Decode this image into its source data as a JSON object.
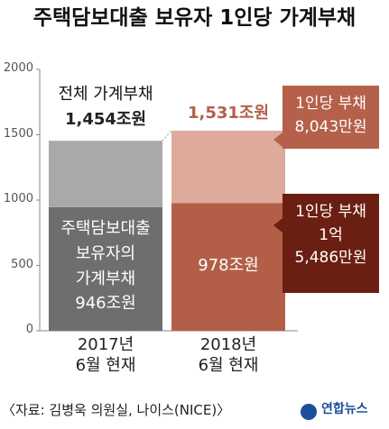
{
  "chart_data": {
    "type": "stacked_bar",
    "title": "주택담보대출 보유자 1인당 가계부채",
    "categories": [
      "2017년\n6월 현재",
      "2018년\n6월 현재"
    ],
    "series": [
      {
        "name": "주택담보대출\n보유자의\n가계부채",
        "colors": [
          "#6e6e6e",
          "#b35f48"
        ],
        "values": [
          946,
          978
        ],
        "value_labels": [
          "946조원",
          "978조원"
        ]
      },
      {
        "colors": [
          "#a9a9a9",
          "#ddaa9c"
        ],
        "values": [
          508,
          553
        ]
      }
    ],
    "totals": {
      "label": "전체 가계부채",
      "values": [
        1454,
        1531
      ],
      "value_labels": [
        "1,454조원",
        "1,531조원"
      ],
      "colors": [
        "#222222",
        "#b35f48"
      ]
    },
    "annotations": [
      {
        "text": "1인당 부채\n8,043만원",
        "color": "#b5604a"
      },
      {
        "text": "1인당 부채\n1억\n5,486만원",
        "color": "#6b1f12"
      }
    ],
    "ylim": [
      0,
      2000
    ],
    "yticks": [
      0,
      500,
      1000,
      1500,
      2000
    ],
    "source": "〈자료: 김병욱 의원실, 나이스(NICE)〉",
    "logo": "연합뉴스"
  }
}
